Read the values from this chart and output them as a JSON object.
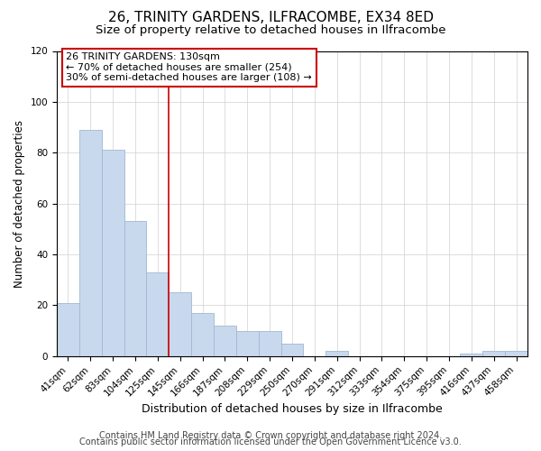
{
  "title": "26, TRINITY GARDENS, ILFRACOMBE, EX34 8ED",
  "subtitle": "Size of property relative to detached houses in Ilfracombe",
  "xlabel": "Distribution of detached houses by size in Ilfracombe",
  "ylabel": "Number of detached properties",
  "bar_labels": [
    "41sqm",
    "62sqm",
    "83sqm",
    "104sqm",
    "125sqm",
    "145sqm",
    "166sqm",
    "187sqm",
    "208sqm",
    "229sqm",
    "250sqm",
    "270sqm",
    "291sqm",
    "312sqm",
    "333sqm",
    "354sqm",
    "375sqm",
    "395sqm",
    "416sqm",
    "437sqm",
    "458sqm"
  ],
  "bar_values": [
    21,
    89,
    81,
    53,
    33,
    25,
    17,
    12,
    10,
    10,
    5,
    0,
    2,
    0,
    0,
    0,
    0,
    0,
    1,
    2,
    2
  ],
  "bar_color": "#c8d9ed",
  "bar_edge_color": "#a0b8d0",
  "ylim": [
    0,
    120
  ],
  "yticks": [
    0,
    20,
    40,
    60,
    80,
    100,
    120
  ],
  "vline_x_index": 4.5,
  "vline_color": "#cc0000",
  "annotation_title": "26 TRINITY GARDENS: 130sqm",
  "annotation_line1": "← 70% of detached houses are smaller (254)",
  "annotation_line2": "30% of semi-detached houses are larger (108) →",
  "annotation_box_color": "#ffffff",
  "annotation_box_edge": "#cc0000",
  "footer1": "Contains HM Land Registry data © Crown copyright and database right 2024.",
  "footer2": "Contains public sector information licensed under the Open Government Licence v3.0.",
  "title_fontsize": 11,
  "subtitle_fontsize": 9.5,
  "xlabel_fontsize": 9,
  "ylabel_fontsize": 8.5,
  "tick_fontsize": 7.5,
  "footer_fontsize": 7,
  "ann_fontsize": 8
}
